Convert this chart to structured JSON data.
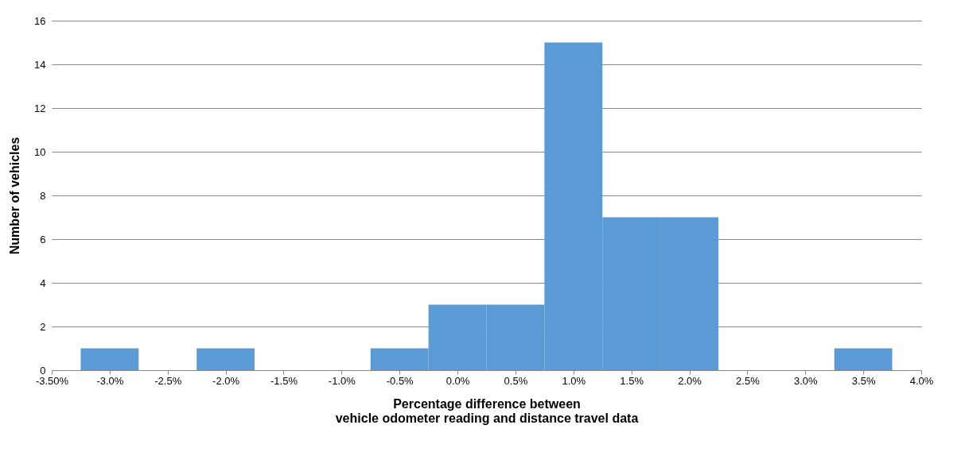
{
  "chart_data": {
    "type": "histogram",
    "xlabel": "Percentage difference between\nvehicle odometer reading and distance travel data",
    "ylabel": "Number of vehicles",
    "bins": [
      -3.25,
      -2.75,
      -2.25,
      -1.75,
      -1.25,
      -0.75,
      -0.25,
      0.25,
      0.75,
      1.25,
      1.75,
      2.25,
      2.75,
      3.25,
      3.75
    ],
    "values": [
      1,
      0,
      1,
      0,
      0,
      1,
      3,
      3,
      15,
      7,
      7,
      0,
      0,
      1
    ],
    "color": "#5b9bd5",
    "xlim": [
      -3.5,
      4.0
    ],
    "xticks": [
      {
        "value": -3.5,
        "label": "-3.50%"
      },
      {
        "value": -3.0,
        "label": "-3.0%"
      },
      {
        "value": -2.5,
        "label": "-2.5%"
      },
      {
        "value": -2.0,
        "label": "-2.0%"
      },
      {
        "value": -1.5,
        "label": "-1.5%"
      },
      {
        "value": -1.0,
        "label": "-1.0%"
      },
      {
        "value": -0.5,
        "label": "-0.5%"
      },
      {
        "value": 0,
        "label": "0.0%"
      },
      {
        "value": 0.5,
        "label": "0.5%"
      },
      {
        "value": 1.0,
        "label": "1.0%"
      },
      {
        "value": 1.5,
        "label": "1.5%"
      },
      {
        "value": 2.0,
        "label": "2.0%"
      },
      {
        "value": 2.5,
        "label": "2.5%"
      },
      {
        "value": 3.0,
        "label": "3.0%"
      },
      {
        "value": 3.5,
        "label": "3.5%"
      },
      {
        "value": 4.0,
        "label": "4.0%"
      }
    ],
    "ylim": [
      0,
      16
    ],
    "yticks": [
      0,
      2,
      4,
      6,
      8,
      10,
      12,
      14,
      16
    ],
    "grid": "y"
  }
}
